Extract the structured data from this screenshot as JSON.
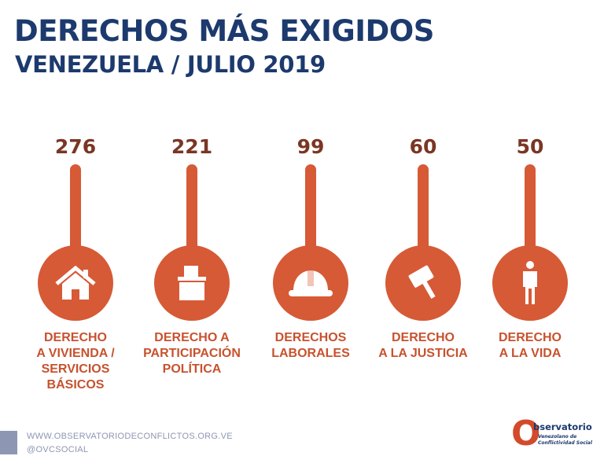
{
  "header": {
    "title": "DERECHOS MÁS EXIGIDOS",
    "subtitle": "VENEZUELA / JULIO 2019"
  },
  "colors": {
    "primary": "#d65a36",
    "number": "#7a3624",
    "label": "#c7522e",
    "heading": "#1c3a6d",
    "footer": "#8d96b3"
  },
  "items": [
    {
      "value": "276",
      "label": "DERECHO\nA VIVIENDA /\nSERVICIOS\nBÁSICOS",
      "icon": "house-icon"
    },
    {
      "value": "221",
      "label": "DERECHO A\nPARTICIPACIÓN\nPOLÍTICA",
      "icon": "ballot-box-icon"
    },
    {
      "value": "99",
      "label": "DERECHOS\nLABORALES",
      "icon": "hard-hat-icon"
    },
    {
      "value": "60",
      "label": "DERECHO\nA LA JUSTICIA",
      "icon": "gavel-icon"
    },
    {
      "value": "50",
      "label": "DERECHO\nA LA VIDA",
      "icon": "person-icon"
    }
  ],
  "footer": {
    "url": "WWW.OBSERVATORIODECONFLICTOS.ORG.VE",
    "social": "@OVCSOCIAL"
  },
  "logo": {
    "letter": "O",
    "title": "bservatorio",
    "subtitle_line1": "Venezolano de",
    "subtitle_line2": "Conflictividad Social"
  }
}
